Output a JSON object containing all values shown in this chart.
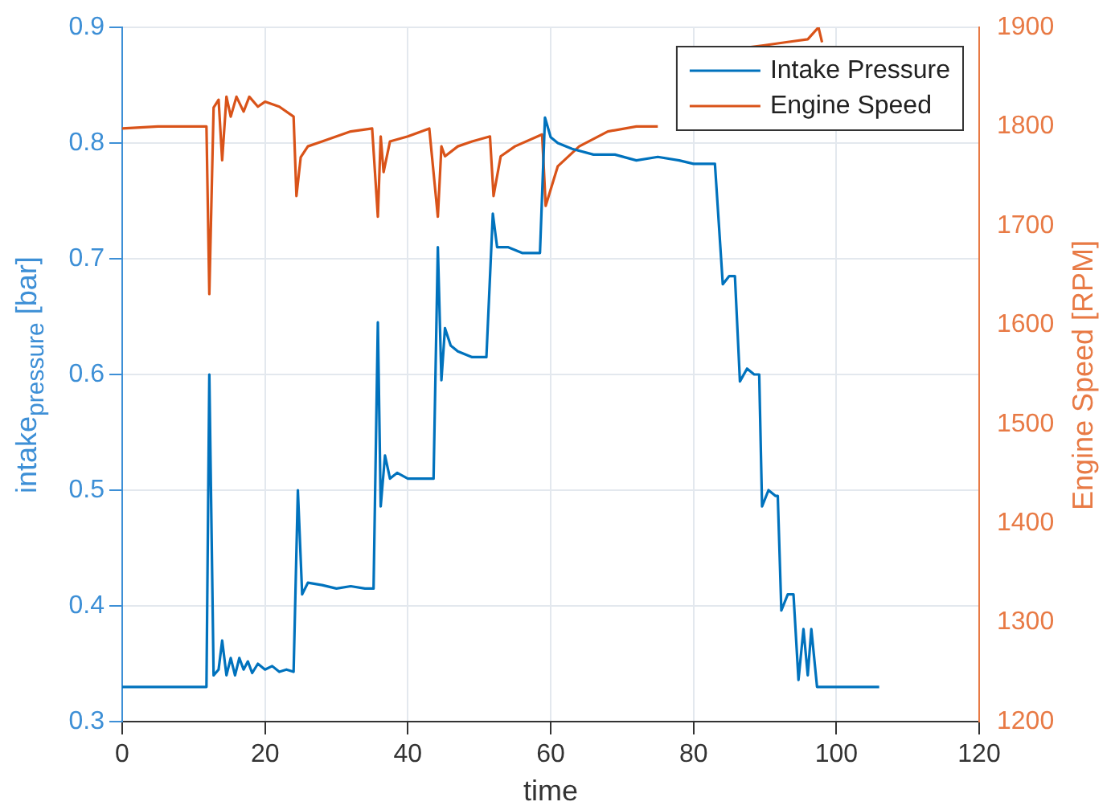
{
  "chart_data": {
    "type": "line",
    "xlabel": "time",
    "ylabel": "intake$_{pressure}$ [bar]",
    "y2label": "Engine Speed [RPM]",
    "xlim": [
      0,
      120
    ],
    "xticks": [
      0,
      20,
      40,
      60,
      80,
      100,
      120
    ],
    "ylim": [
      0.3,
      0.9
    ],
    "yticks": [
      0.3,
      0.4,
      0.5,
      0.6,
      0.7,
      0.8,
      0.9
    ],
    "y2lim": [
      1200,
      1900
    ],
    "y2ticks": [
      1200,
      1300,
      1400,
      1500,
      1600,
      1700,
      1800,
      1900
    ],
    "grid": true,
    "legend": "top right",
    "marker": "none",
    "line_style": "solid",
    "series": [
      {
        "name": "Intake Pressure",
        "color": "#0072bd",
        "x": [
          0,
          11.8,
          12.2,
          12.8,
          13.5,
          14,
          14.6,
          15.2,
          15.8,
          16.4,
          17,
          17.6,
          18.2,
          19,
          20,
          21,
          22,
          23,
          24,
          24.6,
          25.2,
          26,
          28,
          30,
          32,
          34,
          35.2,
          35.8,
          36.2,
          36.8,
          37.5,
          38.5,
          40,
          42,
          43.6,
          44.2,
          44.7,
          45.2,
          46,
          47,
          49,
          51,
          51.9,
          52.5,
          54,
          56,
          58.5,
          59.2,
          60,
          61,
          63,
          66,
          69,
          72,
          75,
          78,
          80,
          83,
          84.1,
          85,
          85.8,
          86.5,
          87.5,
          88.5,
          89.2,
          89.6,
          90.5,
          91.5,
          91.8,
          92.3,
          93.2,
          94,
          94.7,
          95.4,
          96,
          96.5,
          97.3,
          98,
          102,
          106
        ],
        "values": [
          0.33,
          0.33,
          0.6,
          0.34,
          0.345,
          0.37,
          0.34,
          0.355,
          0.34,
          0.355,
          0.345,
          0.352,
          0.342,
          0.35,
          0.345,
          0.348,
          0.343,
          0.345,
          0.343,
          0.5,
          0.41,
          0.42,
          0.418,
          0.415,
          0.417,
          0.415,
          0.415,
          0.645,
          0.486,
          0.53,
          0.51,
          0.515,
          0.51,
          0.51,
          0.51,
          0.71,
          0.595,
          0.64,
          0.625,
          0.62,
          0.615,
          0.615,
          0.739,
          0.71,
          0.71,
          0.705,
          0.705,
          0.822,
          0.805,
          0.8,
          0.795,
          0.79,
          0.79,
          0.785,
          0.788,
          0.785,
          0.782,
          0.782,
          0.678,
          0.685,
          0.685,
          0.594,
          0.605,
          0.6,
          0.6,
          0.486,
          0.5,
          0.495,
          0.495,
          0.396,
          0.41,
          0.41,
          0.336,
          0.38,
          0.34,
          0.38,
          0.33,
          0.33,
          0.33,
          0.33
        ]
      },
      {
        "name": "Engine Speed",
        "color": "#d95319",
        "axis": "y2",
        "x": [
          0,
          5,
          10,
          11.8,
          12.2,
          12.8,
          13.5,
          14,
          14.6,
          15.2,
          16,
          17,
          17.8,
          19,
          20,
          22,
          24,
          24.4,
          25,
          26,
          28,
          30,
          32,
          35,
          35.8,
          36.2,
          36.6,
          37.5,
          40,
          43,
          44.2,
          44.7,
          45.2,
          47,
          49,
          51.5,
          52,
          53,
          55,
          58.8,
          59.3,
          61,
          64,
          68,
          72,
          75,
          80,
          88,
          90,
          93,
          96,
          97.5,
          98
        ],
        "values": [
          1798,
          1800,
          1800,
          1800,
          1631,
          1819,
          1827,
          1766,
          1830,
          1810,
          1830,
          1815,
          1830,
          1820,
          1825,
          1820,
          1810,
          1730,
          1769,
          1780,
          1785,
          1790,
          1795,
          1798,
          1709,
          1790,
          1754,
          1785,
          1790,
          1798,
          1709,
          1780,
          1770,
          1780,
          1785,
          1790,
          1730,
          1770,
          1780,
          1792,
          1720,
          1760,
          1780,
          1795,
          1800,
          1800,
          null,
          1880,
          1882,
          1885,
          1888,
          1900,
          1885
        ]
      }
    ]
  }
}
